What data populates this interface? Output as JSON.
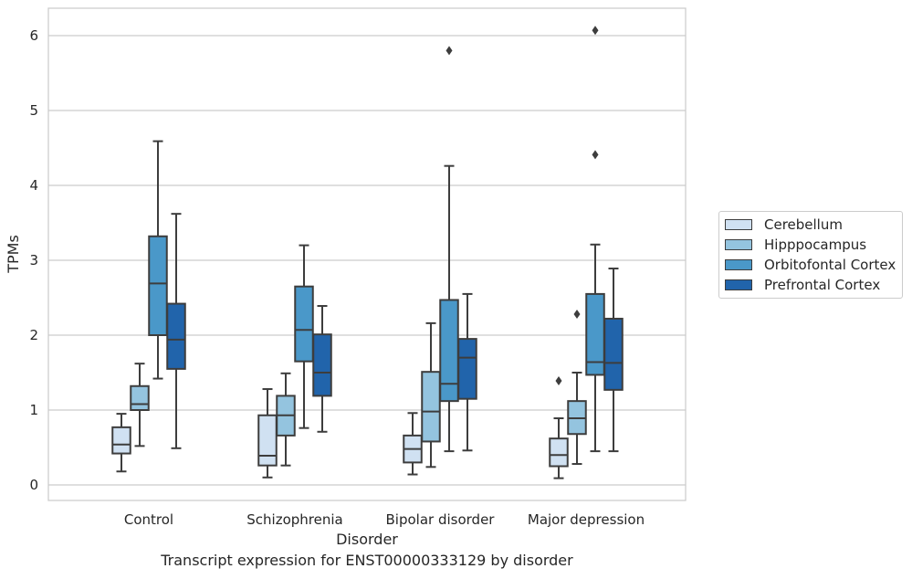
{
  "chart_data": {
    "type": "box",
    "title": "",
    "caption": "Transcript expression for ENST00000333129 by disorder",
    "xlabel": "Disorder",
    "ylabel": "TPMs",
    "ylim": [
      -0.2,
      6.35
    ],
    "yticks": [
      0,
      1,
      2,
      3,
      4,
      5,
      6
    ],
    "grid": true,
    "legend_position": "right",
    "categories": [
      "Control",
      "Schizophrenia",
      "Bipolar disorder",
      "Major depression"
    ],
    "series": [
      {
        "name": "Cerebellum",
        "color": "#d0e1f2",
        "boxes": [
          {
            "whislo": 0.18,
            "q1": 0.42,
            "med": 0.54,
            "q3": 0.77,
            "whishi": 0.95,
            "fliers": []
          },
          {
            "whislo": 0.1,
            "q1": 0.26,
            "med": 0.39,
            "q3": 0.93,
            "whishi": 1.28,
            "fliers": []
          },
          {
            "whislo": 0.14,
            "q1": 0.3,
            "med": 0.48,
            "q3": 0.66,
            "whishi": 0.96,
            "fliers": []
          },
          {
            "whislo": 0.09,
            "q1": 0.25,
            "med": 0.4,
            "q3": 0.62,
            "whishi": 0.89,
            "fliers": [
              1.39
            ]
          }
        ]
      },
      {
        "name": "Hipppocampus",
        "color": "#94c4df",
        "boxes": [
          {
            "whislo": 0.52,
            "q1": 1.0,
            "med": 1.08,
            "q3": 1.32,
            "whishi": 1.62,
            "fliers": []
          },
          {
            "whislo": 0.26,
            "q1": 0.66,
            "med": 0.93,
            "q3": 1.19,
            "whishi": 1.49,
            "fliers": []
          },
          {
            "whislo": 0.24,
            "q1": 0.58,
            "med": 0.98,
            "q3": 1.51,
            "whishi": 2.16,
            "fliers": []
          },
          {
            "whislo": 0.28,
            "q1": 0.68,
            "med": 0.89,
            "q3": 1.12,
            "whishi": 1.5,
            "fliers": [
              2.28
            ]
          }
        ]
      },
      {
        "name": "Orbitofontal Cortex",
        "color": "#4a98c9",
        "boxes": [
          {
            "whislo": 1.42,
            "q1": 2.0,
            "med": 2.69,
            "q3": 3.32,
            "whishi": 4.59,
            "fliers": []
          },
          {
            "whislo": 0.76,
            "q1": 1.65,
            "med": 2.07,
            "q3": 2.65,
            "whishi": 3.2,
            "fliers": []
          },
          {
            "whislo": 0.45,
            "q1": 1.12,
            "med": 1.35,
            "q3": 2.47,
            "whishi": 4.26,
            "fliers": [
              5.8
            ]
          },
          {
            "whislo": 0.45,
            "q1": 1.47,
            "med": 1.64,
            "q3": 2.55,
            "whishi": 3.21,
            "fliers": [
              4.41,
              6.07
            ]
          }
        ]
      },
      {
        "name": "Prefrontal Cortex",
        "color": "#2164ab",
        "boxes": [
          {
            "whislo": 0.49,
            "q1": 1.55,
            "med": 1.94,
            "q3": 2.42,
            "whishi": 3.62,
            "fliers": []
          },
          {
            "whislo": 0.71,
            "q1": 1.19,
            "med": 1.5,
            "q3": 2.01,
            "whishi": 2.39,
            "fliers": []
          },
          {
            "whislo": 0.46,
            "q1": 1.15,
            "med": 1.7,
            "q3": 1.95,
            "whishi": 2.55,
            "fliers": []
          },
          {
            "whislo": 0.45,
            "q1": 1.27,
            "med": 1.63,
            "q3": 2.22,
            "whishi": 2.89,
            "fliers": []
          }
        ]
      }
    ]
  }
}
